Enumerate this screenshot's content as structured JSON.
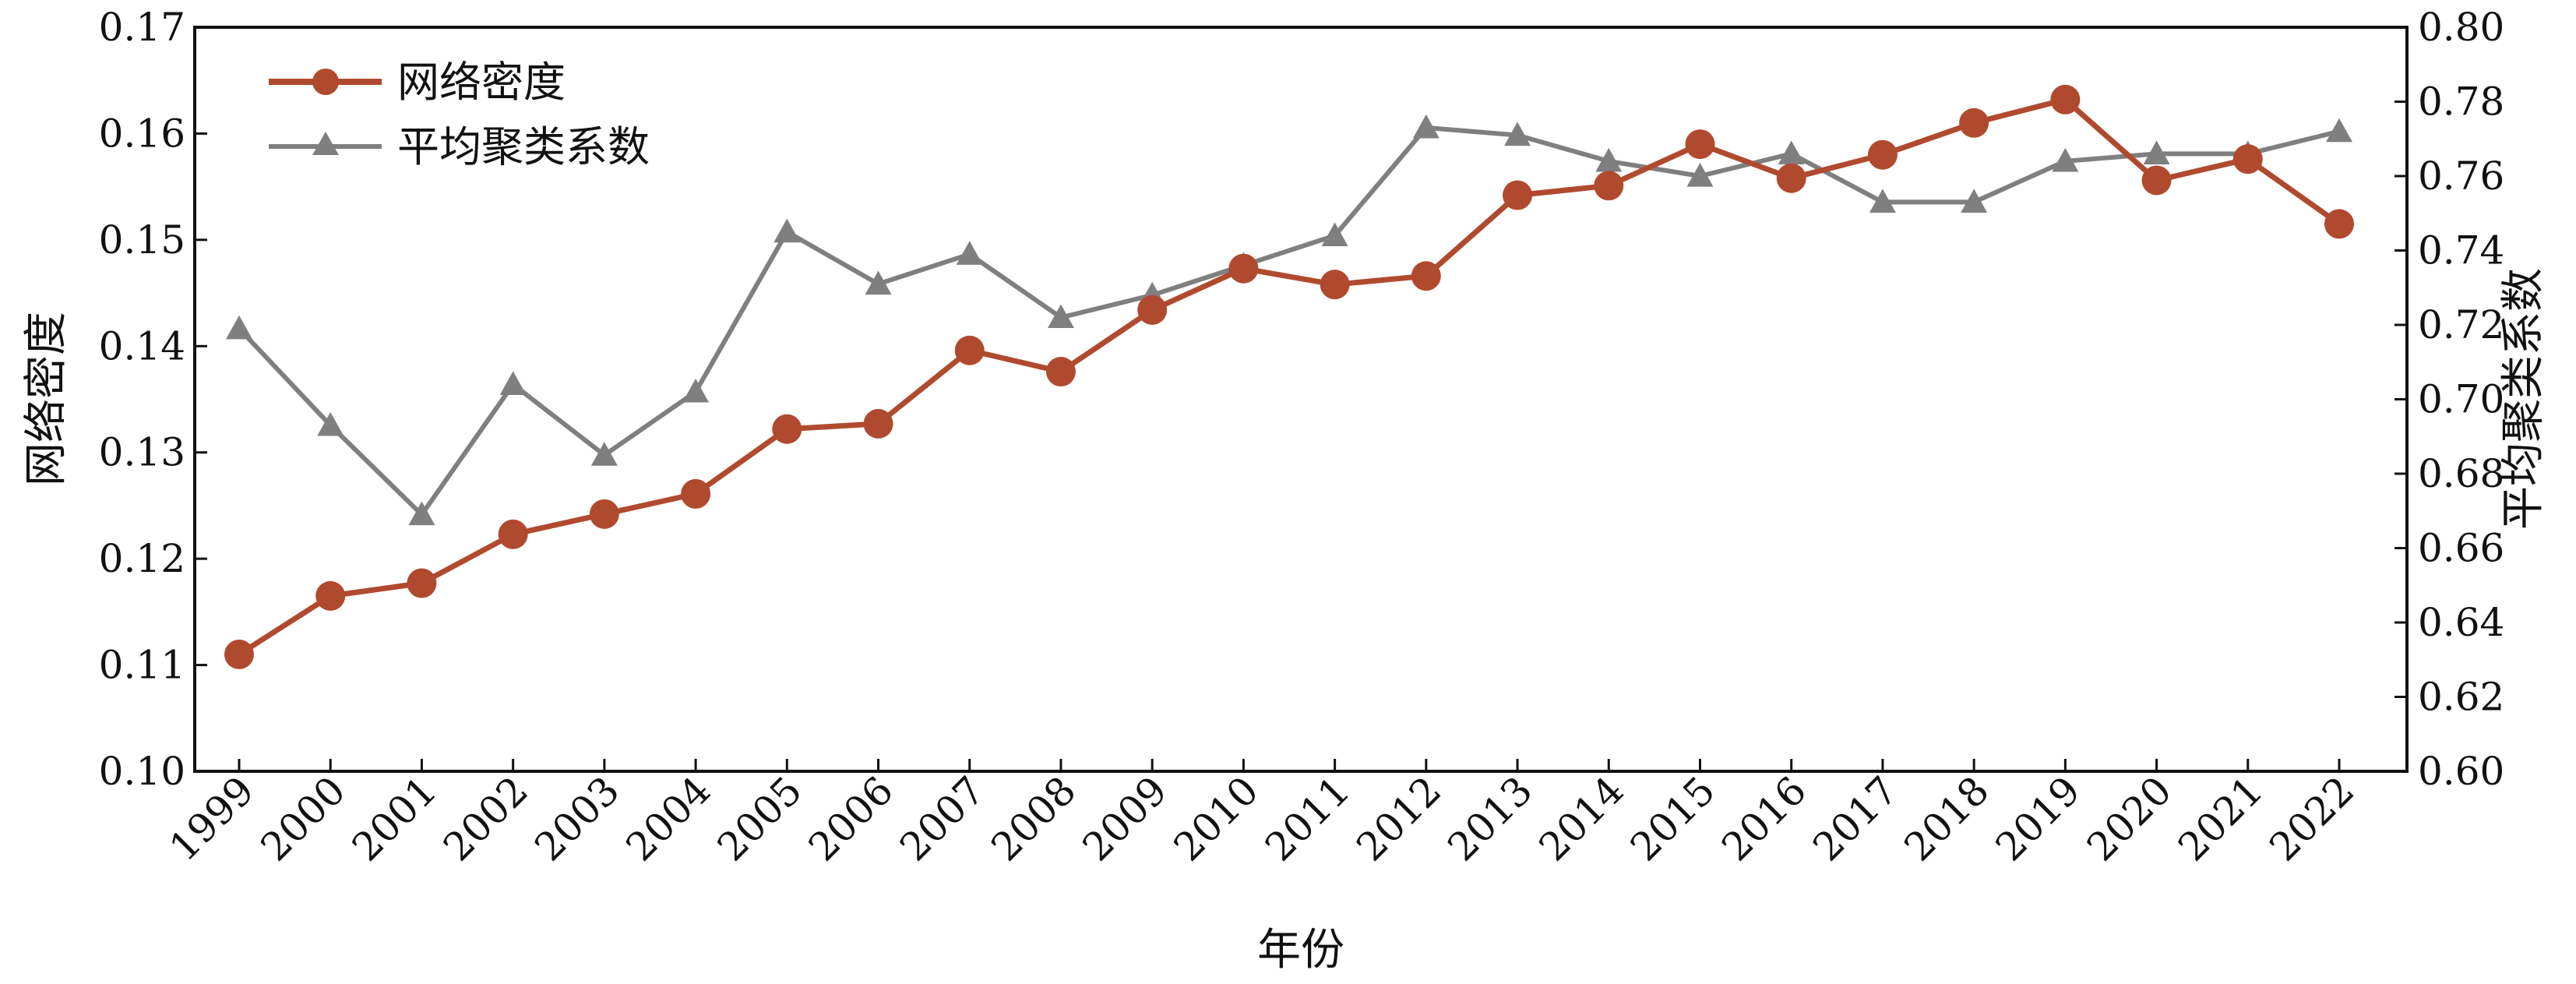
{
  "chart_data": {
    "type": "line",
    "categories": [
      "1999",
      "2000",
      "2001",
      "2002",
      "2003",
      "2004",
      "2005",
      "2006",
      "2007",
      "2008",
      "2009",
      "2010",
      "2011",
      "2012",
      "2013",
      "2014",
      "2015",
      "2016",
      "2017",
      "2018",
      "2019",
      "2020",
      "2021",
      "2022"
    ],
    "series": [
      {
        "name": "网络密度",
        "axis": "left",
        "color": "#b04a2e",
        "marker": "circle",
        "values": [
          0.111,
          0.1165,
          0.1177,
          0.1223,
          0.1242,
          0.1261,
          0.1322,
          0.1327,
          0.1396,
          0.1376,
          0.1434,
          0.1473,
          0.1458,
          0.1466,
          0.1542,
          0.1551,
          0.159,
          0.1558,
          0.158,
          0.161,
          0.1632,
          0.1556,
          0.1576,
          0.1515
        ]
      },
      {
        "name": "平均聚类系数",
        "axis": "right",
        "color": "#7f7f7f",
        "marker": "triangle",
        "values": [
          0.719,
          0.693,
          0.669,
          0.704,
          0.685,
          0.702,
          0.745,
          0.731,
          0.739,
          0.722,
          0.728,
          0.736,
          0.744,
          0.773,
          0.771,
          0.764,
          0.76,
          0.766,
          0.753,
          0.753,
          0.764,
          0.766,
          0.766,
          0.772
        ]
      }
    ],
    "xlabel": "年份",
    "ylabel": "网络密度",
    "y2label": "平均聚类系数",
    "ylim": [
      0.1,
      0.17
    ],
    "y2lim": [
      0.6,
      0.8
    ],
    "yticks": [
      "0.10",
      "0.11",
      "0.12",
      "0.13",
      "0.14",
      "0.15",
      "0.16",
      "0.17"
    ],
    "y2ticks": [
      "0.60",
      "0.62",
      "0.64",
      "0.66",
      "0.68",
      "0.70",
      "0.72",
      "0.74",
      "0.76",
      "0.78",
      "0.80"
    ],
    "grid": false,
    "legend_position": "top-left"
  }
}
